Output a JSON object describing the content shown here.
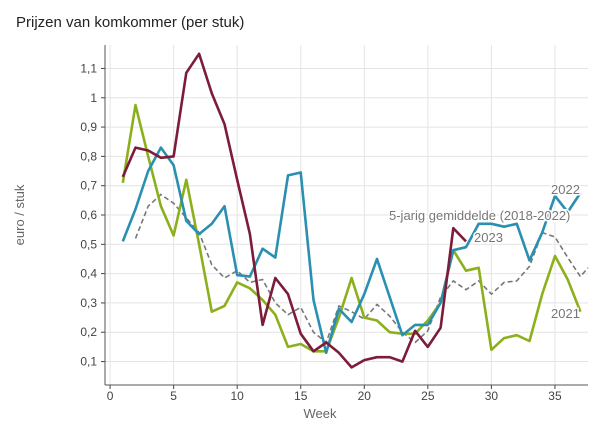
{
  "chart_data": {
    "type": "line",
    "title": "Prijzen van komkommer (per stuk)",
    "xlabel": "Week",
    "ylabel": "euro / stuk",
    "xlim": [
      -0.4,
      37.6
    ],
    "ylim": [
      0.02,
      1.18
    ],
    "xticks": [
      0,
      5,
      10,
      15,
      20,
      25,
      30,
      35
    ],
    "xtick_labels": [
      "0",
      "5",
      "10",
      "15",
      "20",
      "25",
      "30",
      "35"
    ],
    "yticks": [
      0.1,
      0.2,
      0.3,
      0.4,
      0.5,
      0.6,
      0.7,
      0.8,
      0.9,
      1.0,
      1.1
    ],
    "ytick_labels": [
      "0,1",
      "0,2",
      "0,3",
      "0,4",
      "0,5",
      "0,6",
      "0,7",
      "0,8",
      "0,9",
      "1",
      "1,1"
    ],
    "grid": true,
    "series": [
      {
        "name": "2021",
        "label": "2021",
        "color": "#8cb01c",
        "dashed": false,
        "x": [
          1,
          2,
          3,
          4,
          5,
          6,
          7,
          8,
          9,
          10,
          11,
          12,
          13,
          14,
          15,
          16,
          17,
          18,
          19,
          20,
          21,
          22,
          23,
          24,
          25,
          26,
          27,
          28,
          29,
          30,
          31,
          32,
          33,
          34,
          35,
          36,
          37
        ],
        "values": [
          0.71,
          0.975,
          0.8,
          0.63,
          0.53,
          0.72,
          0.5,
          0.27,
          0.29,
          0.37,
          0.35,
          0.31,
          0.26,
          0.15,
          0.16,
          0.135,
          0.135,
          0.25,
          0.385,
          0.25,
          0.24,
          0.2,
          0.195,
          0.195,
          0.24,
          0.3,
          0.48,
          0.41,
          0.42,
          0.14,
          0.18,
          0.19,
          0.17,
          0.33,
          0.46,
          0.38,
          0.27
        ]
      },
      {
        "name": "2022",
        "label": "2022",
        "color": "#2a8fb0",
        "dashed": false,
        "x": [
          1,
          2,
          3,
          4,
          5,
          6,
          7,
          8,
          9,
          10,
          11,
          12,
          13,
          14,
          15,
          16,
          17,
          18,
          19,
          20,
          21,
          22,
          23,
          24,
          25,
          26,
          27,
          28,
          29,
          30,
          31,
          32,
          33,
          34,
          35,
          36,
          37
        ],
        "values": [
          0.51,
          0.62,
          0.75,
          0.83,
          0.77,
          0.58,
          0.535,
          0.57,
          0.63,
          0.395,
          0.39,
          0.485,
          0.455,
          0.735,
          0.745,
          0.31,
          0.13,
          0.28,
          0.235,
          0.33,
          0.45,
          0.32,
          0.19,
          0.225,
          0.225,
          0.3,
          0.48,
          0.49,
          0.57,
          0.57,
          0.56,
          0.57,
          0.445,
          0.54,
          0.665,
          0.61,
          0.675
        ]
      },
      {
        "name": "2023",
        "label": "2023",
        "color": "#7d1c3a",
        "dashed": false,
        "x": [
          1,
          2,
          3,
          4,
          5,
          6,
          7,
          8,
          9,
          10,
          11,
          12,
          13,
          14,
          15,
          16,
          17,
          18,
          19,
          20,
          21,
          22,
          23,
          24,
          25,
          26,
          27,
          28
        ],
        "values": [
          0.73,
          0.83,
          0.82,
          0.795,
          0.8,
          1.085,
          1.15,
          1.015,
          0.91,
          0.72,
          0.535,
          0.225,
          0.385,
          0.33,
          0.195,
          0.135,
          0.165,
          0.13,
          0.08,
          0.105,
          0.115,
          0.115,
          0.1,
          0.205,
          0.15,
          0.215,
          0.555,
          0.51
        ]
      },
      {
        "name": "5-jarig gemiddelde (2018-2022)",
        "label": "5-jarig gemiddelde (2018-2022)",
        "color": "#777777",
        "dashed": true,
        "x": [
          2,
          3,
          4,
          5,
          6,
          7,
          8,
          9,
          10,
          11,
          12,
          13,
          14,
          15,
          16,
          17,
          18,
          19,
          20,
          21,
          22,
          23,
          24,
          25,
          26,
          27,
          28,
          29,
          30,
          31,
          32,
          33,
          34,
          35,
          36,
          37,
          37.6
        ],
        "values": [
          0.52,
          0.63,
          0.67,
          0.64,
          0.59,
          0.54,
          0.43,
          0.385,
          0.41,
          0.37,
          0.38,
          0.3,
          0.26,
          0.285,
          0.2,
          0.165,
          0.29,
          0.27,
          0.245,
          0.295,
          0.255,
          0.2,
          0.165,
          0.205,
          0.32,
          0.375,
          0.345,
          0.375,
          0.33,
          0.37,
          0.375,
          0.425,
          0.54,
          0.525,
          0.455,
          0.39,
          0.42
        ]
      }
    ]
  }
}
